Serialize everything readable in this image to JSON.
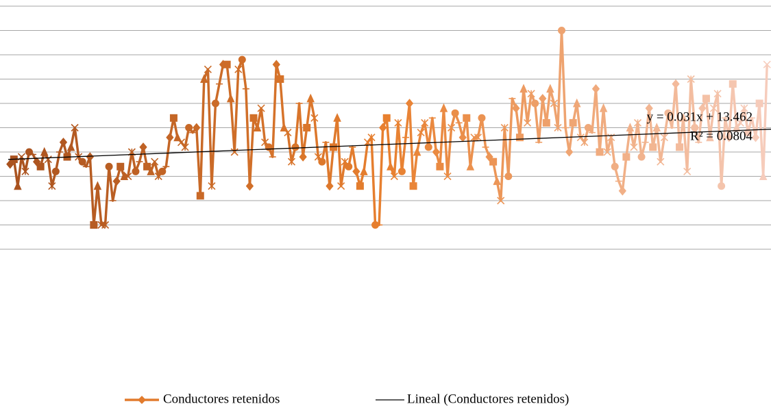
{
  "chart_data": {
    "type": "line",
    "series": [
      {
        "name": "Conductores retenidos",
        "colors": [
          "#a9521f",
          "#e8802f",
          "#f6cdbd"
        ],
        "markers": [
          "diamond",
          "square",
          "triangle",
          "x",
          "star",
          "circle",
          "plus"
        ],
        "values": [
          12.5,
          13.5,
          8,
          14,
          11,
          15,
          14.5,
          13,
          12,
          15,
          13.5,
          8,
          11,
          15,
          17,
          14,
          16,
          20,
          14,
          13,
          12,
          14,
          0,
          8,
          0,
          0,
          12,
          5,
          9,
          12,
          10,
          10,
          15,
          11,
          13,
          16,
          12,
          11,
          13,
          10,
          11,
          12,
          18,
          22,
          18,
          17,
          16,
          20,
          19,
          20,
          6,
          30,
          32,
          8,
          25,
          29,
          33,
          33,
          26,
          15,
          32,
          34,
          28,
          8,
          22,
          20,
          24,
          17,
          16,
          14,
          33,
          30,
          20,
          19,
          13,
          16,
          25,
          14,
          20,
          26,
          22,
          14,
          13,
          17,
          8,
          16,
          22,
          8,
          13,
          12,
          16,
          11,
          8,
          11,
          17,
          18,
          0,
          0,
          20,
          22,
          12,
          10,
          21,
          11,
          18,
          25,
          8,
          15,
          19,
          21,
          16,
          22,
          15,
          12,
          24,
          10,
          20,
          23,
          21,
          18,
          22,
          12,
          18,
          18,
          22,
          16,
          14,
          13,
          9,
          5,
          20,
          10,
          26,
          24,
          18,
          28,
          21,
          27,
          25,
          17,
          26,
          21,
          28,
          25,
          20,
          40,
          20,
          15,
          21,
          25,
          18,
          17,
          20,
          19,
          28,
          15,
          24,
          15,
          18,
          12,
          9,
          7,
          14,
          20,
          16,
          21,
          14,
          17,
          24,
          16,
          20,
          13,
          18,
          23,
          20,
          29,
          16,
          22,
          11,
          30,
          20,
          17,
          24,
          26,
          18,
          24,
          27,
          8,
          22,
          18,
          29,
          20,
          21,
          24,
          19,
          22,
          18,
          25,
          10,
          33
        ]
      }
    ],
    "trendline": {
      "name": "Lineal (Conductores retenidos)",
      "color": "#000000",
      "slope": 0.031,
      "intercept": 13.462,
      "label": "y = 0.031x + 13.462",
      "r2_label": "R² = 0.0804"
    },
    "ylim": [
      -5,
      45
    ],
    "yticks": [
      -5,
      0,
      5,
      10,
      15,
      20,
      25,
      30,
      35,
      40,
      45
    ],
    "grid": true,
    "legend": "bottom"
  }
}
